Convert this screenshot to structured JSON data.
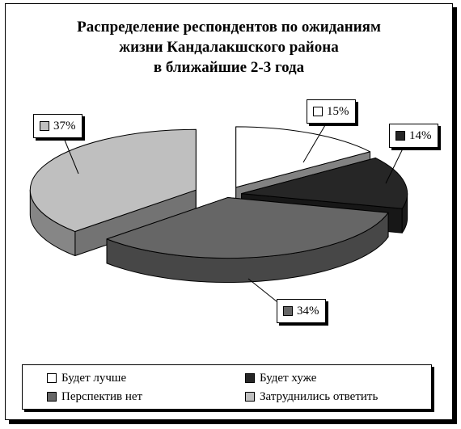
{
  "chart_data": {
    "type": "pie",
    "title_lines": [
      "Распределение респондентов по ожиданиям",
      "жизни Кандалакшского района",
      "в ближайшие 2-3 года"
    ],
    "categories": [
      "Будет лучше",
      "Будет хуже",
      "Перспектив нет",
      "Затруднились ответить"
    ],
    "values": [
      15,
      14,
      34,
      37
    ],
    "value_labels": [
      "15%",
      "14%",
      "34%",
      "37%"
    ],
    "colors": [
      "#ffffff",
      "#262626",
      "#666666",
      "#bfbfbf"
    ],
    "legend_position": "bottom",
    "three_d": true,
    "exploded": true
  }
}
